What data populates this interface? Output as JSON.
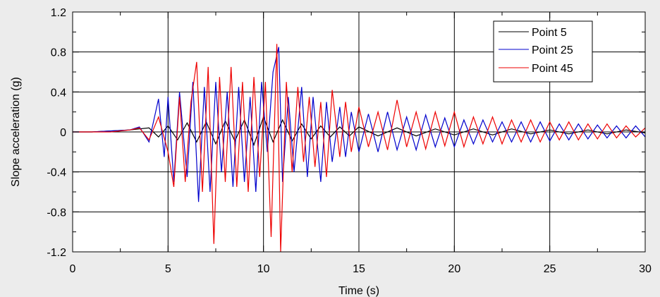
{
  "chart_data": {
    "type": "line",
    "title": "",
    "xlabel": "Time (s)",
    "ylabel": "Slope acceleration (g)",
    "xlim": [
      0,
      30
    ],
    "ylim": [
      -1.2,
      1.2
    ],
    "x_ticks": [
      0,
      5,
      10,
      15,
      20,
      25,
      30
    ],
    "x_tick_labels": [
      "0",
      "5",
      "10",
      "15",
      "20",
      "25",
      "30"
    ],
    "y_ticks": [
      1.2,
      0.8,
      0.4,
      0,
      -0.4,
      -0.8,
      -1.2
    ],
    "y_tick_labels": [
      "1.2",
      "0.8",
      "0.4",
      "0",
      "-0.4",
      "-0.8",
      "-1.2"
    ],
    "grid": true,
    "legend_position": "top-right",
    "series": [
      {
        "name": "Point 5",
        "color": "#000000",
        "x": [
          0,
          1,
          2,
          3,
          4,
          4.5,
          5,
          5.5,
          6,
          6.5,
          7,
          7.5,
          8,
          8.5,
          9,
          9.5,
          10,
          10.5,
          11,
          11.5,
          12,
          12.5,
          13,
          13.5,
          14,
          14.5,
          15,
          16,
          17,
          18,
          19,
          20,
          21,
          22,
          23,
          24,
          25,
          26,
          27,
          28,
          29,
          30
        ],
        "y": [
          0,
          0,
          0.01,
          0.02,
          0.04,
          -0.05,
          0.06,
          -0.08,
          0.09,
          -0.1,
          0.1,
          -0.12,
          0.11,
          -0.09,
          0.12,
          -0.13,
          0.15,
          -0.1,
          0.12,
          -0.09,
          0.08,
          -0.07,
          0.06,
          -0.05,
          0.05,
          -0.04,
          0.05,
          -0.04,
          0.04,
          -0.04,
          0.03,
          -0.03,
          0.03,
          -0.03,
          0.03,
          -0.02,
          0.02,
          -0.02,
          0.02,
          -0.02,
          0.02,
          -0.01
        ]
      },
      {
        "name": "Point 25",
        "color": "#0000cc",
        "x": [
          0,
          1,
          2,
          3,
          3.5,
          4,
          4.5,
          4.8,
          5,
          5.3,
          5.6,
          6,
          6.3,
          6.6,
          6.9,
          7.2,
          7.5,
          7.8,
          8.1,
          8.4,
          8.7,
          9,
          9.3,
          9.6,
          9.9,
          10.2,
          10.5,
          10.8,
          11,
          11.3,
          11.6,
          12,
          12.3,
          12.6,
          13,
          13.3,
          13.6,
          14,
          14.3,
          14.6,
          15,
          15.5,
          16,
          16.5,
          17,
          17.5,
          18,
          18.5,
          19,
          19.5,
          20,
          20.5,
          21,
          21.5,
          22,
          22.5,
          23,
          23.5,
          24,
          24.5,
          25,
          25.5,
          26,
          26.5,
          27,
          27.5,
          28,
          28.5,
          29,
          29.5,
          30
        ],
        "y": [
          0,
          0,
          0.01,
          0.02,
          0.05,
          -0.1,
          0.33,
          -0.25,
          0.35,
          -0.5,
          0.4,
          -0.45,
          0.5,
          -0.7,
          0.45,
          -0.6,
          0.5,
          -0.4,
          0.4,
          -0.55,
          0.45,
          -0.5,
          0.35,
          -0.6,
          0.5,
          -0.2,
          0.6,
          0.85,
          -0.5,
          0.35,
          -0.4,
          0.45,
          -0.45,
          0.35,
          -0.5,
          0.3,
          -0.3,
          0.25,
          -0.25,
          0.2,
          -0.2,
          0.18,
          -0.2,
          0.2,
          -0.18,
          0.15,
          -0.18,
          0.17,
          -0.15,
          0.14,
          -0.15,
          0.12,
          -0.12,
          0.12,
          -0.1,
          0.1,
          -0.1,
          0.1,
          -0.1,
          0.1,
          -0.09,
          0.08,
          -0.08,
          0.08,
          -0.07,
          0.07,
          -0.06,
          0.06,
          -0.06,
          0.06,
          -0.05
        ]
      },
      {
        "name": "Point 45",
        "color": "#ee0000",
        "x": [
          0,
          1,
          2,
          3,
          3.5,
          4,
          4.5,
          5,
          5.3,
          5.6,
          5.9,
          6.2,
          6.5,
          6.8,
          7.1,
          7.4,
          7.7,
          8,
          8.3,
          8.6,
          8.9,
          9.2,
          9.5,
          9.8,
          10.1,
          10.4,
          10.7,
          10.9,
          11.2,
          11.5,
          11.8,
          12.1,
          12.4,
          12.7,
          13,
          13.3,
          13.6,
          14,
          14.3,
          14.6,
          15,
          15.5,
          16,
          16.5,
          17,
          17.5,
          18,
          18.5,
          19,
          19.5,
          20,
          20.5,
          21,
          21.5,
          22,
          22.5,
          23,
          23.5,
          24,
          24.5,
          25,
          25.5,
          26,
          26.5,
          27,
          27.5,
          28,
          28.5,
          29,
          29.5,
          30
        ],
        "y": [
          0,
          0,
          0,
          0.02,
          0.04,
          -0.08,
          0.15,
          -0.2,
          -0.55,
          0.35,
          -0.5,
          0.3,
          0.7,
          -0.6,
          0.65,
          -1.12,
          0.55,
          -0.5,
          0.65,
          -0.55,
          0.5,
          -0.6,
          0.55,
          -0.45,
          0.5,
          -1.05,
          0.88,
          -1.2,
          0.5,
          -0.4,
          0.45,
          -0.3,
          0.35,
          -0.35,
          0.3,
          -0.45,
          0.42,
          -0.25,
          0.3,
          -0.2,
          0.25,
          -0.15,
          0.2,
          -0.18,
          0.32,
          -0.15,
          0.2,
          -0.17,
          0.2,
          -0.14,
          0.2,
          -0.15,
          0.15,
          -0.12,
          0.15,
          -0.12,
          0.12,
          -0.1,
          0.12,
          -0.1,
          0.1,
          -0.08,
          0.1,
          -0.08,
          0.08,
          -0.07,
          0.08,
          -0.06,
          0.06,
          -0.05,
          0.04
        ]
      }
    ]
  }
}
